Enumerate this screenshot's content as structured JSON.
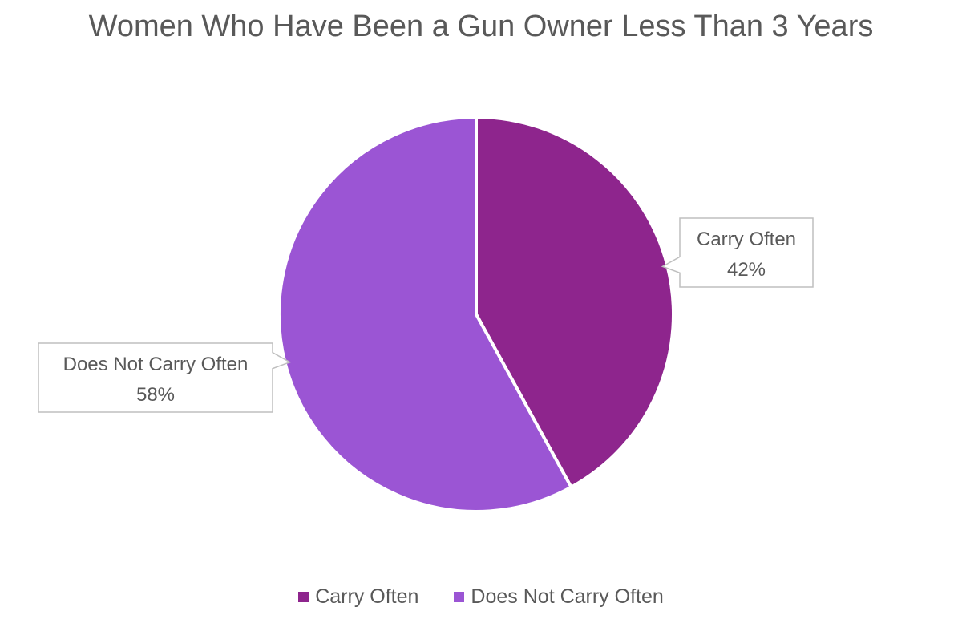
{
  "chart_data": {
    "type": "pie",
    "title": "Women Who Have Been a Gun Owner Less Than 3 Years",
    "slices": [
      {
        "label": "Carry Often",
        "value": 42,
        "value_label": "42%",
        "color": "#8E258D"
      },
      {
        "label": "Does Not Carry Often",
        "value": 58,
        "value_label": "58%",
        "color": "#9B55D4"
      }
    ],
    "legend_position": "bottom"
  }
}
